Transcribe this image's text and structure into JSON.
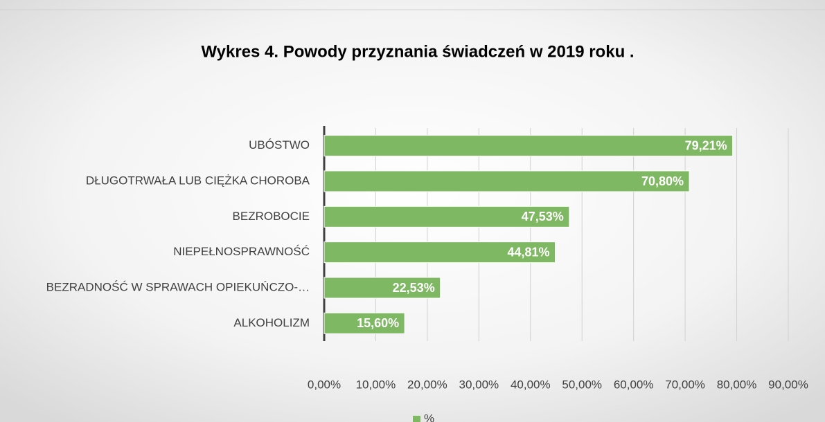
{
  "chart_data": {
    "type": "barh",
    "title": "Wykres 4. Powody przyznania świadczeń w 2019 roku .",
    "categories": [
      "UBÓSTWO",
      "DŁUGOTRWAŁA LUB CIĘŻKA CHOROBA",
      "BEZROBOCIE",
      "NIEPEŁNOSPRAWNOŚĆ",
      "BEZRADNOŚĆ W SPRAWACH OPIEKUŃCZO-…",
      "ALKOHOLIZM"
    ],
    "series": [
      {
        "name": "%",
        "color": "#7fb862",
        "values": [
          79.21,
          70.8,
          47.53,
          44.81,
          22.53,
          15.6
        ],
        "value_labels": [
          "79,21%",
          "70,80%",
          "47,53%",
          "44,81%",
          "22,53%",
          "15,60%"
        ]
      }
    ],
    "xlim": [
      0,
      90
    ],
    "xticks": [
      {
        "value": 0,
        "label": "0,00%"
      },
      {
        "value": 10,
        "label": "10,00%"
      },
      {
        "value": 20,
        "label": "20,00%"
      },
      {
        "value": 30,
        "label": "30,00%"
      },
      {
        "value": 40,
        "label": "40,00%"
      },
      {
        "value": 50,
        "label": "50,00%"
      },
      {
        "value": 60,
        "label": "60,00%"
      },
      {
        "value": 70,
        "label": "70,00%"
      },
      {
        "value": 80,
        "label": "80,00%"
      },
      {
        "value": 90,
        "label": "90,00%"
      }
    ],
    "grid": true,
    "legend": "bottom"
  }
}
